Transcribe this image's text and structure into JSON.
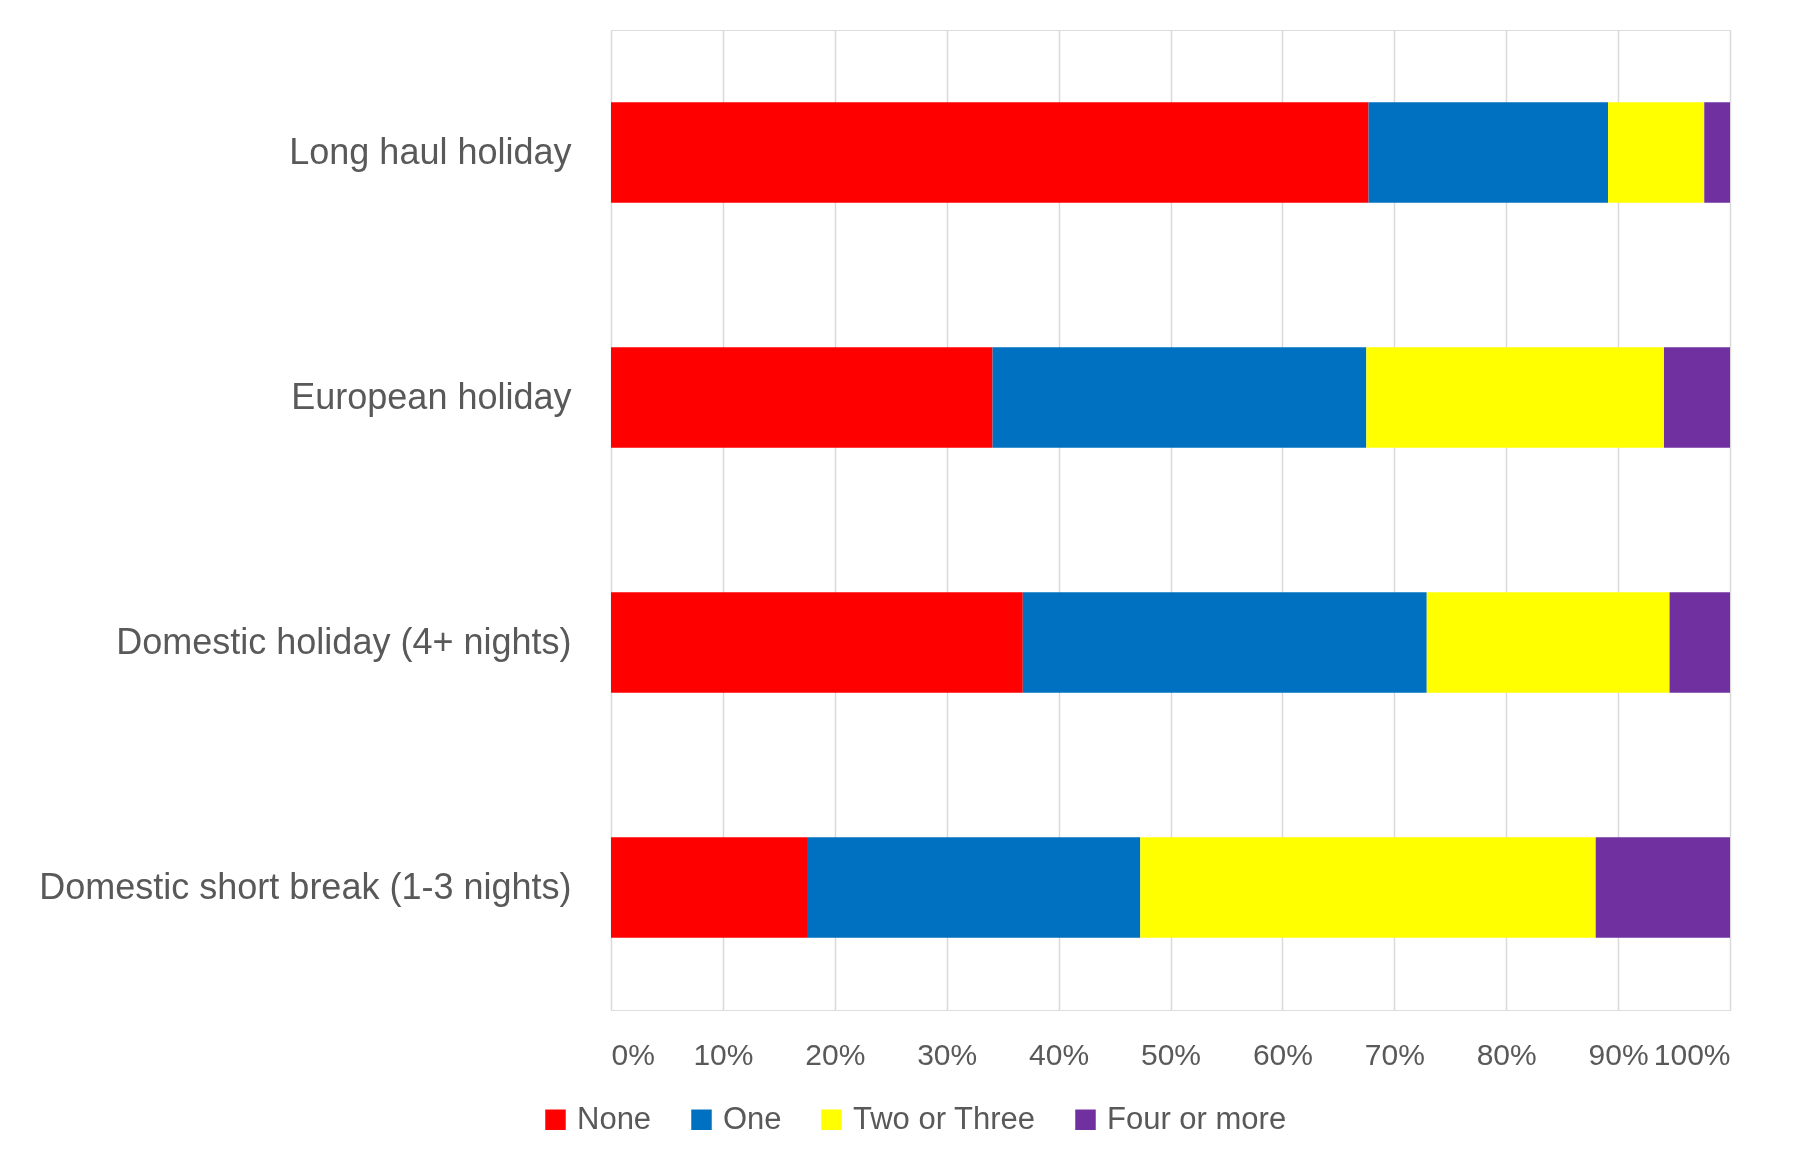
{
  "chart_data": {
    "type": "bar",
    "orientation": "horizontal",
    "stacked": true,
    "categories": [
      "Long haul holiday",
      "European holiday",
      "Domestic holiday (4+ nights)",
      "Domestic short break (1-3 nights)"
    ],
    "series": [
      {
        "name": "None",
        "color": "#ff0000",
        "values": [
          67.7,
          34.1,
          36.8,
          17.6
        ]
      },
      {
        "name": "One",
        "color": "#0070c0",
        "values": [
          21.4,
          33.4,
          36.1,
          29.7
        ]
      },
      {
        "name": "Two or Three",
        "color": "#ffff00",
        "values": [
          8.6,
          26.6,
          21.7,
          40.7
        ]
      },
      {
        "name": "Four or more",
        "color": "#7030a0",
        "values": [
          2.3,
          5.9,
          5.4,
          12.0
        ]
      }
    ],
    "xlim": [
      0,
      100
    ],
    "xticks": [
      {
        "value": 0,
        "label": "0%"
      },
      {
        "value": 10,
        "label": "10%"
      },
      {
        "value": 20,
        "label": "20%"
      },
      {
        "value": 30,
        "label": "30%"
      },
      {
        "value": 40,
        "label": "40%"
      },
      {
        "value": 50,
        "label": "50%"
      },
      {
        "value": 60,
        "label": "60%"
      },
      {
        "value": 70,
        "label": "70%"
      },
      {
        "value": 80,
        "label": "80%"
      },
      {
        "value": 90,
        "label": "90%"
      },
      {
        "value": 100,
        "label": "100%"
      }
    ],
    "grid": "x",
    "legend": "bottom"
  }
}
